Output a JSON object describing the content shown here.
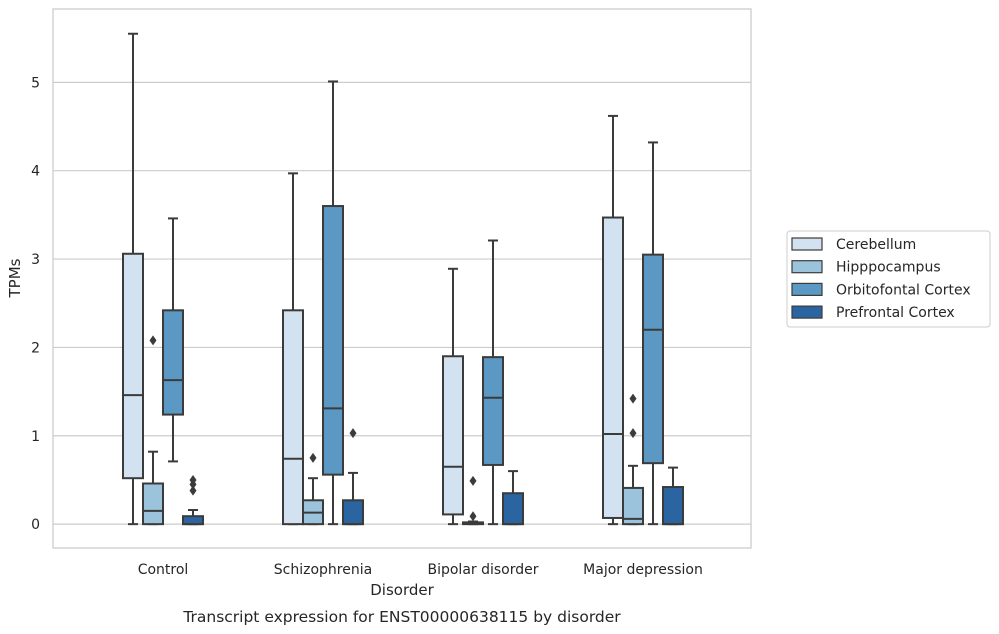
{
  "chart_data": {
    "type": "box",
    "title": "",
    "caption": "Transcript expression for ENST00000638115 by disorder",
    "xlabel": "Disorder",
    "ylabel": "TPMs",
    "ylim": [
      -0.27,
      5.83
    ],
    "yticks": [
      0,
      1,
      2,
      3,
      4,
      5
    ],
    "grid": "horizontal",
    "legend_position": "right",
    "categories": [
      "Control",
      "Schizophrenia",
      "Bipolar disorder",
      "Major depression"
    ],
    "series": [
      {
        "name": "Cerebellum",
        "color": "#d3e2f1",
        "boxes": [
          {
            "whisker_low": 0.0,
            "q1": 0.52,
            "median": 1.46,
            "q3": 3.06,
            "whisker_high": 5.55,
            "outliers": []
          },
          {
            "whisker_low": 0.0,
            "q1": 0.0,
            "median": 0.74,
            "q3": 2.42,
            "whisker_high": 3.97,
            "outliers": []
          },
          {
            "whisker_low": 0.0,
            "q1": 0.11,
            "median": 0.65,
            "q3": 1.9,
            "whisker_high": 2.89,
            "outliers": []
          },
          {
            "whisker_low": 0.0,
            "q1": 0.07,
            "median": 1.02,
            "q3": 3.47,
            "whisker_high": 4.62,
            "outliers": []
          }
        ]
      },
      {
        "name": "Hipppocampus",
        "color": "#9cc3dc",
        "boxes": [
          {
            "whisker_low": 0.0,
            "q1": 0.0,
            "median": 0.15,
            "q3": 0.46,
            "whisker_high": 0.82,
            "outliers": [
              2.08
            ]
          },
          {
            "whisker_low": 0.0,
            "q1": 0.0,
            "median": 0.13,
            "q3": 0.27,
            "whisker_high": 0.52,
            "outliers": [
              0.75
            ]
          },
          {
            "whisker_low": 0.0,
            "q1": 0.0,
            "median": 0.01,
            "q3": 0.02,
            "whisker_high": 0.03,
            "outliers": [
              0.49,
              0.09
            ]
          },
          {
            "whisker_low": 0.0,
            "q1": 0.0,
            "median": 0.06,
            "q3": 0.41,
            "whisker_high": 0.66,
            "outliers": [
              1.42,
              1.03
            ]
          }
        ]
      },
      {
        "name": "Orbitofontal Cortex",
        "color": "#5b98c3",
        "boxes": [
          {
            "whisker_low": 0.71,
            "q1": 1.24,
            "median": 1.63,
            "q3": 2.42,
            "whisker_high": 3.46,
            "outliers": []
          },
          {
            "whisker_low": 0.0,
            "q1": 0.56,
            "median": 1.31,
            "q3": 3.6,
            "whisker_high": 5.01,
            "outliers": []
          },
          {
            "whisker_low": 0.0,
            "q1": 0.67,
            "median": 1.43,
            "q3": 1.89,
            "whisker_high": 3.21,
            "outliers": []
          },
          {
            "whisker_low": 0.0,
            "q1": 0.69,
            "median": 2.2,
            "q3": 3.05,
            "whisker_high": 4.32,
            "outliers": []
          }
        ]
      },
      {
        "name": "Prefrontal Cortex",
        "color": "#2b65a1",
        "boxes": [
          {
            "whisker_low": 0.0,
            "q1": 0.0,
            "median": 0.0,
            "q3": 0.09,
            "whisker_high": 0.16,
            "outliers": [
              0.5,
              0.45,
              0.38
            ]
          },
          {
            "whisker_low": 0.0,
            "q1": 0.0,
            "median": 0.0,
            "q3": 0.27,
            "whisker_high": 0.58,
            "outliers": [
              1.03
            ]
          },
          {
            "whisker_low": 0.0,
            "q1": 0.0,
            "median": 0.0,
            "q3": 0.35,
            "whisker_high": 0.6,
            "outliers": []
          },
          {
            "whisker_low": 0.0,
            "q1": 0.0,
            "median": 0.0,
            "q3": 0.42,
            "whisker_high": 0.64,
            "outliers": []
          }
        ]
      }
    ]
  }
}
